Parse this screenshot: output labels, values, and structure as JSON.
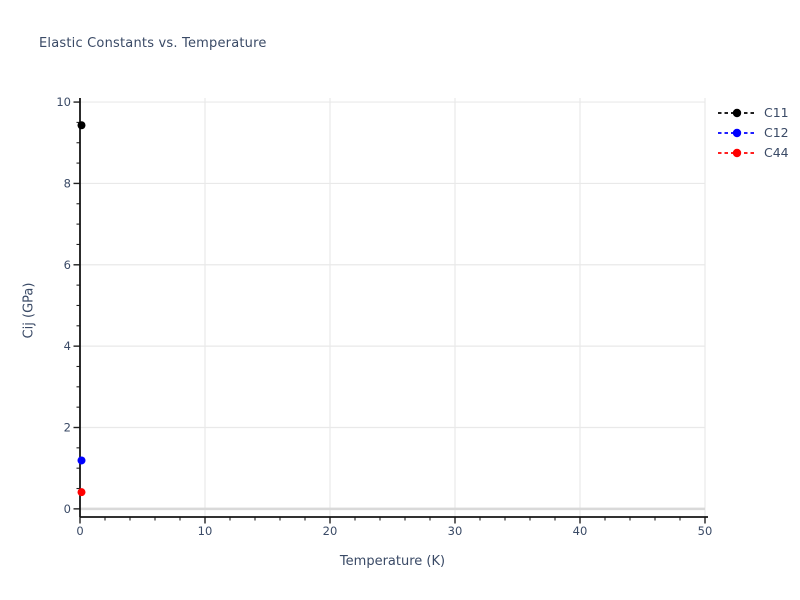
{
  "figure": {
    "background": "#ffffff"
  },
  "style": {
    "text_color": "#3a4a66",
    "grid_color": "#e9e9e9",
    "zero_line_color": "#d9d9d9",
    "spine_color": "#151515",
    "tick_color": "#222222"
  },
  "chart_data": {
    "type": "scatter",
    "title": "Elastic Constants vs. Temperature",
    "xlabel": "Temperature (K)",
    "ylabel": "Cij (GPa)",
    "xlim": [
      0,
      50
    ],
    "ylim": [
      -0.2,
      10.1
    ],
    "xticks_major": [
      0,
      10,
      20,
      30,
      40,
      50
    ],
    "xtick_minor_step": 2,
    "yticks_major": [
      0,
      2,
      4,
      6,
      8,
      10
    ],
    "ytick_minor_step": 0.5,
    "grid": "major",
    "legend": {
      "position": "outside-top-right",
      "entries": [
        "C11",
        "C12",
        "C44"
      ]
    },
    "series": [
      {
        "name": "C11",
        "color": "#000000",
        "linestyle": "dashed",
        "marker": "circle",
        "x": [
          0
        ],
        "y": [
          9.43
        ]
      },
      {
        "name": "C12",
        "color": "#0000ff",
        "linestyle": "dashed",
        "marker": "circle",
        "x": [
          0
        ],
        "y": [
          1.19
        ]
      },
      {
        "name": "C44",
        "color": "#ff0000",
        "linestyle": "dashed",
        "marker": "circle",
        "x": [
          0
        ],
        "y": [
          0.41
        ]
      }
    ]
  }
}
